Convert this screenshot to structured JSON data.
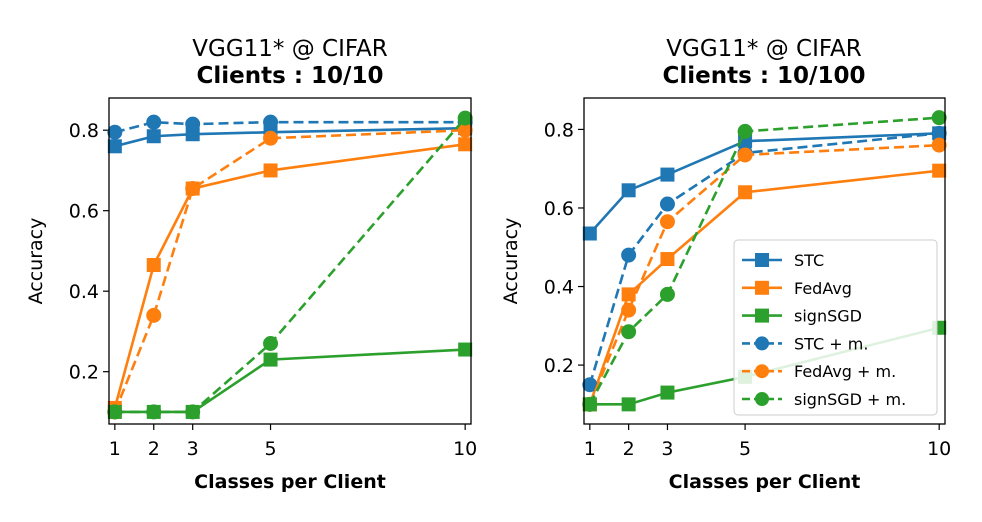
{
  "chart_data": [
    {
      "type": "line",
      "title": "VGG11* @ CIFAR",
      "subtitle": "Clients : 10/10",
      "xlabel": "Classes per Client",
      "ylabel": "Accuracy",
      "x": [
        1,
        2,
        3,
        5,
        10
      ],
      "xticks": [
        "1",
        "2",
        "3",
        "5",
        "10"
      ],
      "xlim": [
        0.85,
        10.15
      ],
      "ylim": [
        0.07,
        0.88
      ],
      "yticks": [
        "0.2",
        "0.4",
        "0.6",
        "0.8"
      ],
      "grid": false,
      "series": [
        {
          "name": "STC",
          "color": "#1f77b4",
          "style": "solid",
          "marker": "square",
          "values": [
            0.76,
            0.785,
            0.79,
            0.795,
            0.805
          ]
        },
        {
          "name": "FedAvg",
          "color": "#ff7f0e",
          "style": "solid",
          "marker": "square",
          "values": [
            0.11,
            0.465,
            0.655,
            0.7,
            0.765
          ]
        },
        {
          "name": "signSGD",
          "color": "#2ca02c",
          "style": "solid",
          "marker": "square",
          "values": [
            0.1,
            0.1,
            0.1,
            0.23,
            0.255
          ]
        },
        {
          "name": "STC + m.",
          "color": "#1f77b4",
          "style": "dashed",
          "marker": "circle",
          "values": [
            0.795,
            0.82,
            0.815,
            0.82,
            0.82
          ]
        },
        {
          "name": "FedAvg + m.",
          "color": "#ff7f0e",
          "style": "dashed",
          "marker": "circle",
          "values": [
            0.1,
            0.34,
            0.655,
            0.78,
            0.8
          ]
        },
        {
          "name": "signSGD + m.",
          "color": "#2ca02c",
          "style": "dashed",
          "marker": "circle",
          "values": [
            0.1,
            0.1,
            0.1,
            0.27,
            0.83
          ]
        }
      ]
    },
    {
      "type": "line",
      "title": "VGG11* @ CIFAR",
      "subtitle": "Clients : 10/100",
      "xlabel": "Classes per Client",
      "ylabel": "Accuracy",
      "x": [
        1,
        2,
        3,
        5,
        10
      ],
      "xticks": [
        "1",
        "2",
        "3",
        "5",
        "10"
      ],
      "xlim": [
        0.85,
        10.15
      ],
      "ylim": [
        0.05,
        0.88
      ],
      "yticks": [
        "0.2",
        "0.4",
        "0.6",
        "0.8"
      ],
      "grid": false,
      "legend": "lower-right",
      "series": [
        {
          "name": "STC",
          "color": "#1f77b4",
          "style": "solid",
          "marker": "square",
          "values": [
            0.535,
            0.645,
            0.685,
            0.77,
            0.79
          ]
        },
        {
          "name": "FedAvg",
          "color": "#ff7f0e",
          "style": "solid",
          "marker": "square",
          "values": [
            0.1,
            0.38,
            0.47,
            0.64,
            0.695
          ]
        },
        {
          "name": "signSGD",
          "color": "#2ca02c",
          "style": "solid",
          "marker": "square",
          "values": [
            0.1,
            0.1,
            0.13,
            0.17,
            0.295
          ]
        },
        {
          "name": "STC + m.",
          "color": "#1f77b4",
          "style": "dashed",
          "marker": "circle",
          "values": [
            0.15,
            0.48,
            0.61,
            0.74,
            0.79
          ]
        },
        {
          "name": "FedAvg + m.",
          "color": "#ff7f0e",
          "style": "dashed",
          "marker": "circle",
          "values": [
            0.1,
            0.34,
            0.565,
            0.735,
            0.76
          ]
        },
        {
          "name": "signSGD + m.",
          "color": "#2ca02c",
          "style": "dashed",
          "marker": "circle",
          "values": [
            0.1,
            0.285,
            0.38,
            0.795,
            0.83
          ]
        }
      ]
    }
  ]
}
